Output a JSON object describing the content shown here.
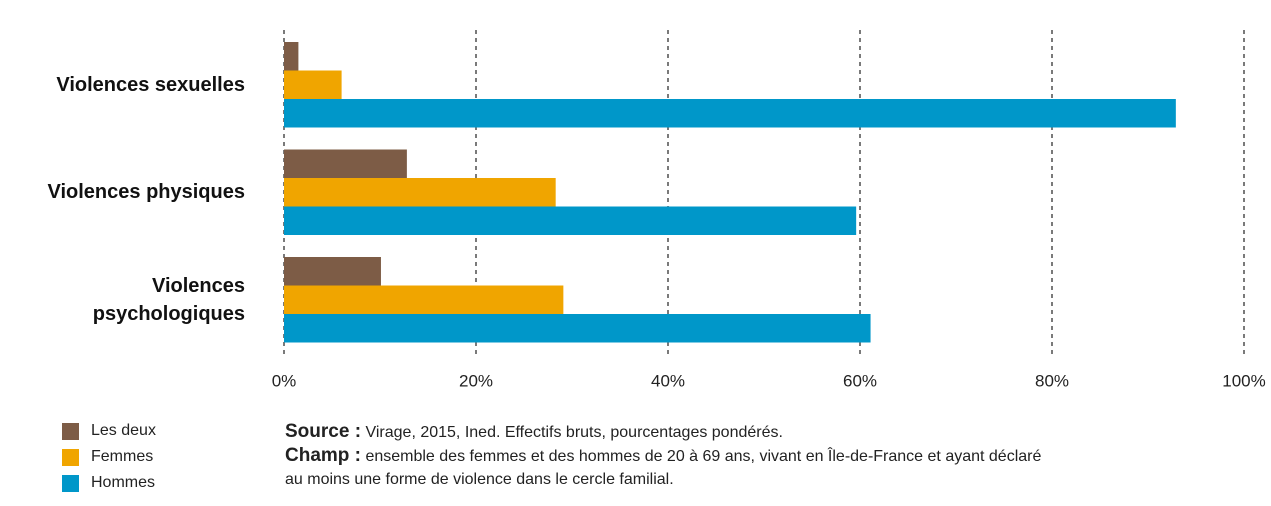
{
  "chart_data": {
    "type": "barh",
    "categories": [
      "Violences sexuelles",
      "Violences physiques",
      "Violences psychologiques"
    ],
    "series": [
      {
        "name": "Les deux",
        "color": "#7d5c46",
        "values": [
          1.5,
          12.8,
          10.1
        ]
      },
      {
        "name": "Femmes",
        "color": "#f0a500",
        "values": [
          6.0,
          28.3,
          29.1
        ]
      },
      {
        "name": "Hommes",
        "color": "#0097c9",
        "values": [
          92.9,
          59.6,
          61.1
        ]
      }
    ],
    "xlim": [
      0,
      100
    ],
    "xticks": [
      {
        "value": 0,
        "label": "0%"
      },
      {
        "value": 20,
        "label": "20%"
      },
      {
        "value": 40,
        "label": "40%"
      },
      {
        "value": 60,
        "label": "60%"
      },
      {
        "value": 80,
        "label": "80%"
      },
      {
        "value": 100,
        "label": "100%"
      }
    ],
    "grid": true,
    "notes": {
      "source_label": "Source :",
      "source_text": "Virage, 2015, Ined. Effectifs bruts, pourcentages pondérés.",
      "champ_label": "Champ :",
      "champ_text": "ensemble des femmes et des hommes de 20 à 69 ans, vivant en Île-de-France et ayant déclaré au moins une forme de violence dans le cercle familial."
    }
  }
}
